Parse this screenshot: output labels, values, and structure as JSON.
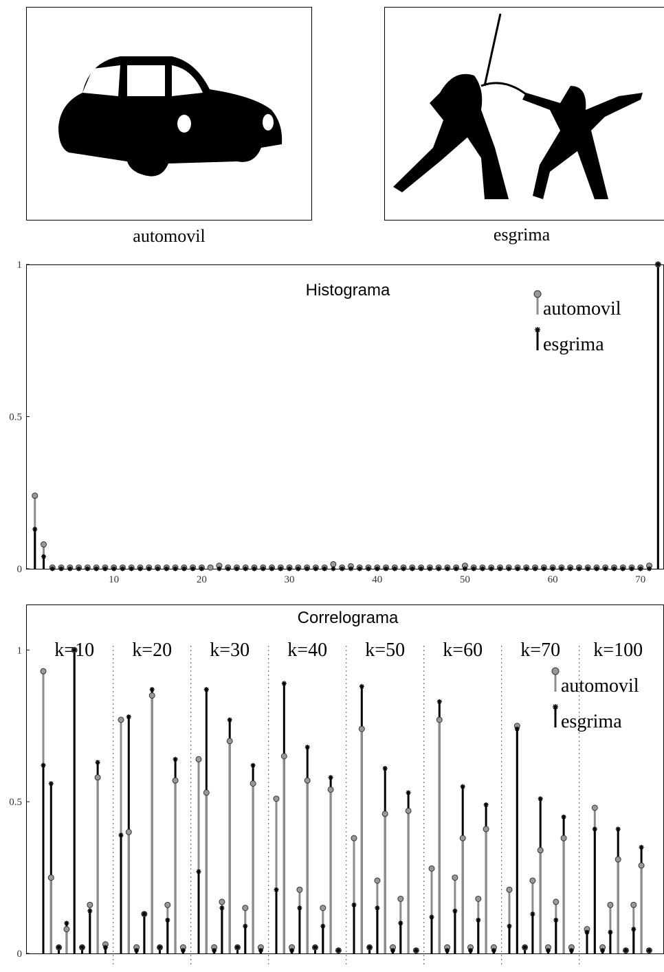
{
  "images": [
    {
      "label": "automovil"
    },
    {
      "label": "esgrima"
    }
  ],
  "chart_data": [
    {
      "type": "stem",
      "title": "Histograma",
      "xlim": [
        0,
        72.6
      ],
      "xticks": [
        10,
        20,
        30,
        40,
        50,
        60,
        70
      ],
      "ylim": [
        0,
        1
      ],
      "yticks": [
        0,
        0.5,
        1
      ],
      "legend": "upper right",
      "x": [
        1,
        2,
        3,
        4,
        5,
        6,
        7,
        8,
        9,
        10,
        11,
        12,
        13,
        14,
        15,
        16,
        17,
        18,
        19,
        20,
        21,
        22,
        23,
        24,
        25,
        26,
        27,
        28,
        29,
        30,
        31,
        32,
        33,
        34,
        35,
        36,
        37,
        38,
        39,
        40,
        41,
        42,
        43,
        44,
        45,
        46,
        47,
        48,
        49,
        50,
        51,
        52,
        53,
        54,
        55,
        56,
        57,
        58,
        59,
        60,
        61,
        62,
        63,
        64,
        65,
        66,
        67,
        68,
        69,
        70,
        71,
        72
      ],
      "series": [
        {
          "name": "automovil",
          "color": "#8c8c8c",
          "values": [
            0.24,
            0.08,
            0.004,
            0.004,
            0.004,
            0.004,
            0.004,
            0.004,
            0.004,
            0.004,
            0.004,
            0.004,
            0.004,
            0.004,
            0.004,
            0.004,
            0.004,
            0.004,
            0.004,
            0.004,
            0.004,
            0.01,
            0.004,
            0.004,
            0.004,
            0.004,
            0.004,
            0.004,
            0.004,
            0.004,
            0.004,
            0.004,
            0.004,
            0.004,
            0.015,
            0.004,
            0.008,
            0.004,
            0.004,
            0.004,
            0.004,
            0.004,
            0.004,
            0.004,
            0.004,
            0.004,
            0.004,
            0.004,
            0.004,
            0.01,
            0.004,
            0.004,
            0.004,
            0.004,
            0.004,
            0.004,
            0.004,
            0.004,
            0.004,
            0.004,
            0.004,
            0.004,
            0.004,
            0.004,
            0.004,
            0.004,
            0.004,
            0.004,
            0.004,
            0.004,
            0.01,
            1
          ]
        },
        {
          "name": "esgrima",
          "color": "#000000",
          "values": [
            0.13,
            0.04,
            0,
            0,
            0,
            0,
            0,
            0,
            0,
            0,
            0,
            0,
            0,
            0,
            0,
            0,
            0,
            0,
            0,
            0,
            0.005,
            0,
            0,
            0,
            0,
            0,
            0,
            0,
            0,
            0,
            0,
            0,
            0,
            0,
            0,
            0,
            0,
            0,
            0,
            0,
            0,
            0,
            0,
            0,
            0,
            0,
            0,
            0,
            0,
            0,
            0,
            0,
            0,
            0,
            0,
            0,
            0,
            0,
            0,
            0,
            0,
            0,
            0,
            0,
            0,
            0,
            0,
            0,
            0,
            0,
            0,
            1
          ]
        }
      ]
    },
    {
      "type": "grouped-stem",
      "title": "Correlograma",
      "ylim": [
        0,
        1.15
      ],
      "yticks": [
        0,
        0.5,
        1
      ],
      "legend": "upper right",
      "groups": [
        "k=10",
        "k=20",
        "k=30",
        "k=40",
        "k=50",
        "k=60",
        "k=70",
        "k=100"
      ],
      "series": [
        {
          "name": "automovil",
          "color": "#8c8c8c",
          "values": [
            0.93,
            0.25,
            0.02,
            0.08,
            1.0,
            0.02,
            0.16,
            0.58,
            0.03,
            0.77,
            0.4,
            0.02,
            0.13,
            0.85,
            0.02,
            0.16,
            0.57,
            0.02,
            0.64,
            0.53,
            0.02,
            0.17,
            0.7,
            0.02,
            0.15,
            0.56,
            0.02,
            0.51,
            0.65,
            0.02,
            0.21,
            0.57,
            0.02,
            0.15,
            0.54,
            0.01,
            0.38,
            0.74,
            0.02,
            0.24,
            0.46,
            0.02,
            0.18,
            0.47,
            0.01,
            0.28,
            0.77,
            0.02,
            0.25,
            0.38,
            0.02,
            0.18,
            0.41,
            0.02,
            0.21,
            0.75,
            0.02,
            0.24,
            0.34,
            0.02,
            0.17,
            0.38,
            0.02,
            0.08,
            0.48,
            0.02,
            0.16,
            0.31,
            0.01,
            0.16,
            0.29,
            0.01
          ]
        },
        {
          "name": "esgrima",
          "color": "#000000",
          "values": [
            0.62,
            0.56,
            0.02,
            0.1,
            1.0,
            0.02,
            0.14,
            0.63,
            0.02,
            0.39,
            0.78,
            0.01,
            0.13,
            0.87,
            0.02,
            0.11,
            0.64,
            0.01,
            0.27,
            0.87,
            0.01,
            0.15,
            0.77,
            0.02,
            0.09,
            0.62,
            0.01,
            0.21,
            0.89,
            0.01,
            0.15,
            0.68,
            0.02,
            0.09,
            0.58,
            0.01,
            0.16,
            0.88,
            0.02,
            0.15,
            0.61,
            0.01,
            0.1,
            0.53,
            0.01,
            0.12,
            0.83,
            0.01,
            0.14,
            0.55,
            0.01,
            0.11,
            0.49,
            0.01,
            0.09,
            0.74,
            0.02,
            0.13,
            0.51,
            0.01,
            0.11,
            0.45,
            0.01,
            0.07,
            0.41,
            0.01,
            0.07,
            0.41,
            0.01,
            0.08,
            0.35,
            0.01
          ]
        }
      ]
    }
  ]
}
